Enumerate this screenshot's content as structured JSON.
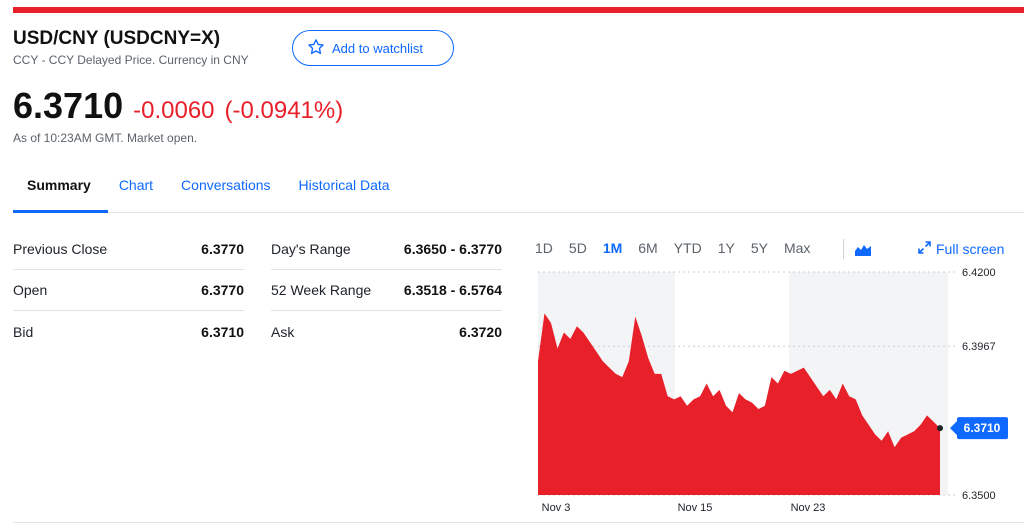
{
  "header": {
    "title": "USD/CNY (USDCNY=X)",
    "subtitle": "CCY - CCY Delayed Price. Currency in CNY",
    "watchlist_label": "Add to watchlist"
  },
  "quote": {
    "price": "6.3710",
    "change": "-0.0060",
    "change_pct": "(-0.0941%)",
    "as_of": "As of 10:23AM GMT. Market open."
  },
  "tabs": [
    "Summary",
    "Chart",
    "Conversations",
    "Historical Data"
  ],
  "active_tab": "Summary",
  "stats": [
    {
      "label": "Previous Close",
      "value": "6.3770"
    },
    {
      "label": "Open",
      "value": "6.3770"
    },
    {
      "label": "Bid",
      "value": "6.3710"
    },
    {
      "label": "Day's Range",
      "value": "6.3650 - 6.3770"
    },
    {
      "label": "52 Week Range",
      "value": "6.3518 - 6.5764"
    },
    {
      "label": "Ask",
      "value": "6.3720"
    }
  ],
  "chart": {
    "ranges": [
      "1D",
      "5D",
      "1M",
      "6M",
      "YTD",
      "1Y",
      "5Y",
      "Max"
    ],
    "active_range": "1M",
    "fullscreen_label": "Full screen",
    "current_price_label": "6.3710",
    "colors": {
      "area": "#e8202a",
      "accent": "#0f69ff",
      "shade": "#f3f4f5"
    }
  },
  "chart_data": {
    "type": "area",
    "title": "",
    "xlabel": "",
    "ylabel": "",
    "ylim": [
      6.35,
      6.42
    ],
    "y_ticks": [
      6.42,
      6.3967,
      6.35
    ],
    "x_ticks": [
      "Nov 3",
      "Nov 15",
      "Nov 23"
    ],
    "last_value": 6.371,
    "grid": true,
    "series": [
      {
        "values": [
          6.392,
          6.407,
          6.404,
          6.396,
          6.401,
          6.399,
          6.403,
          6.401,
          6.398,
          6.395,
          6.392,
          6.39,
          6.388,
          6.387,
          6.392,
          6.406,
          6.4,
          6.393,
          6.388,
          6.388,
          6.381,
          6.38,
          6.381,
          6.378,
          6.38,
          6.381,
          6.385,
          6.381,
          6.383,
          6.378,
          6.376,
          6.382,
          6.38,
          6.379,
          6.377,
          6.378,
          6.387,
          6.385,
          6.389,
          6.388,
          6.389,
          6.39,
          6.387,
          6.384,
          6.381,
          6.383,
          6.38,
          6.385,
          6.381,
          6.38,
          6.375,
          6.372,
          6.369,
          6.367,
          6.37,
          6.365,
          6.368,
          6.369,
          6.37,
          6.372,
          6.375,
          6.373,
          6.371
        ]
      }
    ]
  }
}
